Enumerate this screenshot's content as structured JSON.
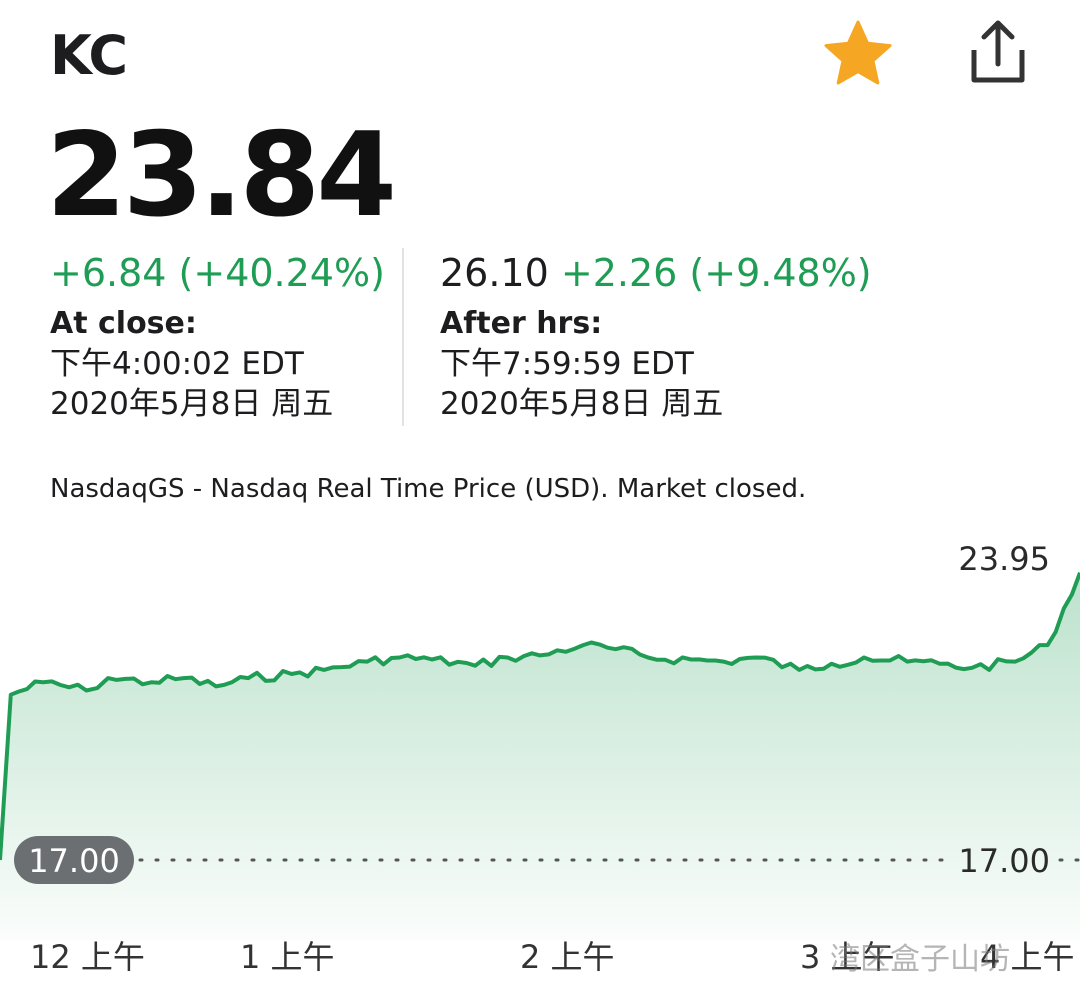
{
  "header": {
    "ticker": "KC",
    "favorite_icon": "star-icon",
    "share_icon": "share-icon",
    "accent_color": "#F5A623"
  },
  "quote": {
    "price": "23.84",
    "change": "+6.84 (+40.24%)",
    "close_label": "At close:",
    "close_time": "下午4:00:02 EDT",
    "close_date": "2020年5月8日 周五",
    "after_price": "26.10",
    "after_change": "+2.26 (+9.48%)",
    "after_label": "After hrs:",
    "after_time": "下午7:59:59 EDT",
    "after_date": "2020年5月8日 周五",
    "positive_color": "#1F9D55"
  },
  "exchange_note": "NasdaqGS - Nasdaq Real Time Price (USD). Market closed.",
  "watermark": "湾区盒子山坊",
  "chart_data": {
    "type": "area",
    "title": "",
    "xlabel": "",
    "ylabel": "",
    "ylim": [
      17.0,
      24.5
    ],
    "grid": false,
    "legend": "none",
    "x_tick_labels": [
      "12 上午",
      "1 上午",
      "2 上午",
      "3 上午",
      "4 上午"
    ],
    "reference_line": {
      "value": 17.0,
      "left_label": "17.00",
      "right_label": "17.00"
    },
    "max_label": "23.95",
    "series": [
      {
        "name": "KC",
        "color": "#1F9D55",
        "x": [
          0,
          1,
          4,
          8,
          10,
          14,
          17,
          20,
          23,
          27,
          30,
          34,
          37,
          40,
          44,
          47,
          50,
          54,
          57,
          60,
          64,
          67,
          70,
          74,
          77,
          80,
          84,
          87,
          90,
          94,
          97,
          100
        ],
        "values": [
          17.0,
          21.0,
          21.3,
          21.1,
          21.4,
          21.3,
          21.4,
          21.2,
          21.4,
          21.5,
          21.6,
          21.8,
          21.9,
          21.85,
          21.7,
          21.9,
          21.95,
          22.2,
          22.1,
          21.9,
          21.85,
          21.8,
          21.9,
          21.6,
          21.75,
          21.9,
          21.8,
          21.75,
          21.65,
          21.8,
          22.2,
          23.95
        ]
      }
    ]
  }
}
